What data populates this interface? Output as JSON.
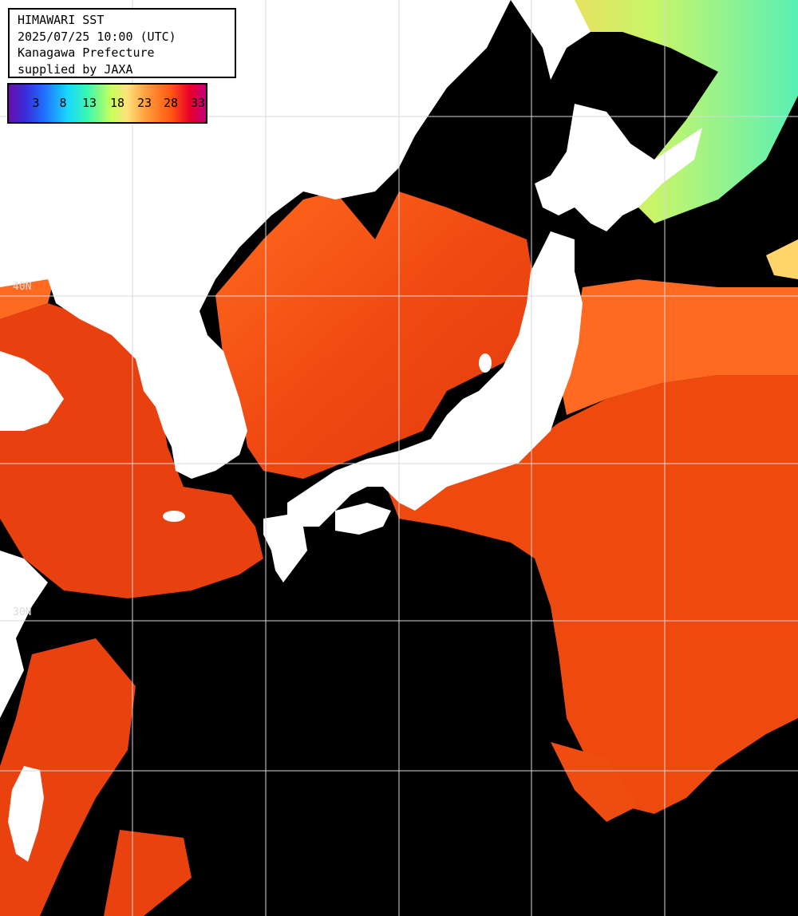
{
  "info": {
    "line1": "HIMAWARI SST",
    "line2": "2025/07/25 10:00 (UTC)",
    "line3": "Kanagawa Prefecture",
    "line4": "supplied by JAXA"
  },
  "colorbar": {
    "ticks": [
      "3",
      "8",
      "13",
      "18",
      "23",
      "28",
      "33"
    ],
    "colors": [
      "#6a0dad",
      "#1f6fff",
      "#19d9ff",
      "#3cf7b0",
      "#ffe27a",
      "#ff5a14",
      "#e8002a"
    ]
  },
  "grid": {
    "label_40n": "40N",
    "label_30n": "30N"
  },
  "palette": {
    "sea_warm": "#f04810",
    "sea_hot": "#e02a08",
    "sea_mild": "#ff7a2a",
    "sea_cool": "#b4f06a",
    "land": "#ffffff",
    "cloud": "#000000",
    "gridline": "#d8d8d8"
  }
}
